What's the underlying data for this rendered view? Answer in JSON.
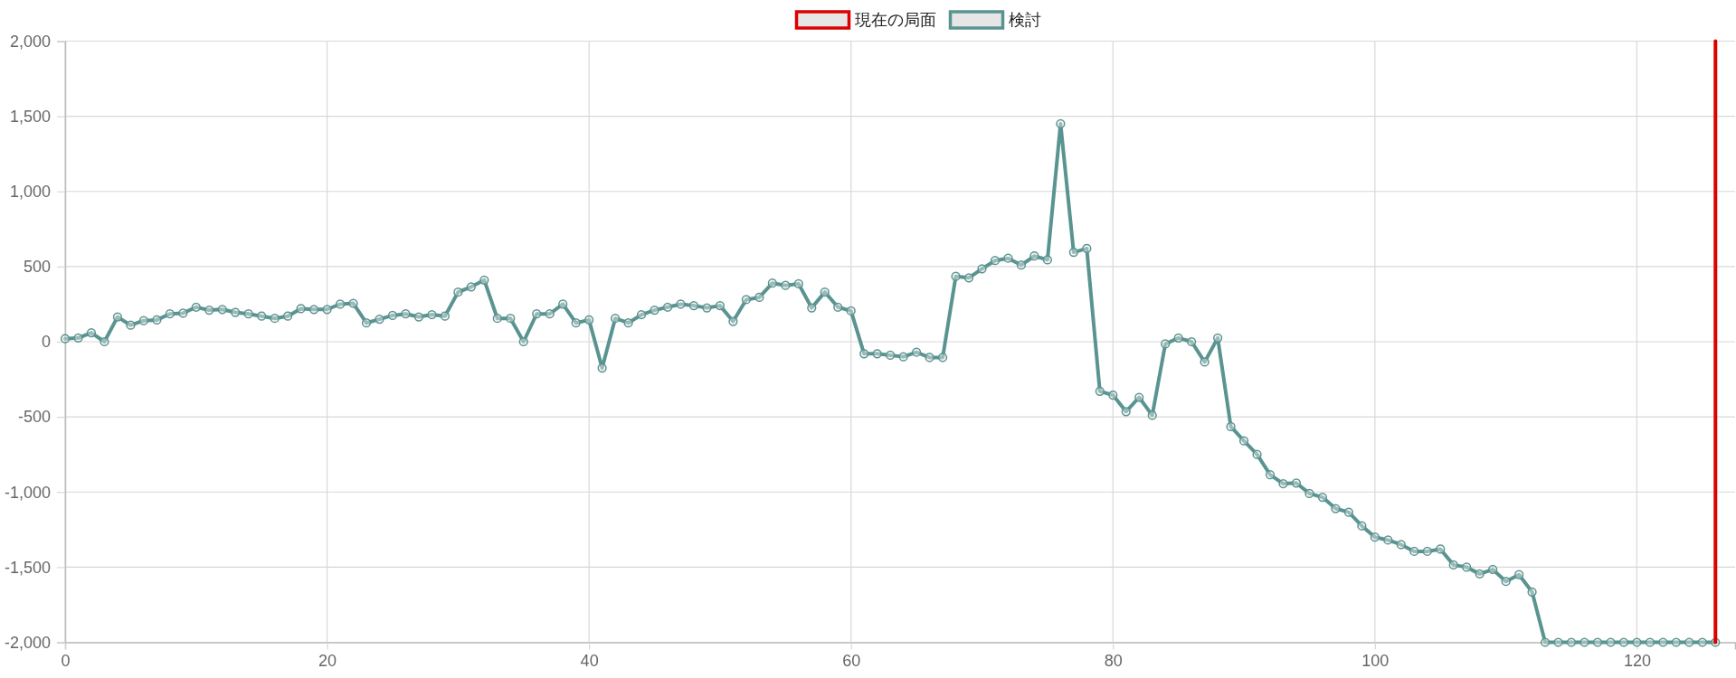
{
  "chart_data": {
    "type": "line",
    "x": [
      0,
      1,
      2,
      3,
      4,
      5,
      6,
      7,
      8,
      9,
      10,
      11,
      12,
      13,
      14,
      15,
      16,
      17,
      18,
      19,
      20,
      21,
      22,
      23,
      24,
      25,
      26,
      27,
      28,
      29,
      30,
      31,
      32,
      33,
      34,
      35,
      36,
      37,
      38,
      39,
      40,
      41,
      42,
      43,
      44,
      45,
      46,
      47,
      48,
      49,
      50,
      51,
      52,
      53,
      54,
      55,
      56,
      57,
      58,
      59,
      60,
      61,
      62,
      63,
      64,
      65,
      66,
      67,
      68,
      69,
      70,
      71,
      72,
      73,
      74,
      75,
      76,
      77,
      78,
      79,
      80,
      81,
      82,
      83,
      84,
      85,
      86,
      87,
      88,
      89,
      90,
      91,
      92,
      93,
      94,
      95,
      96,
      97,
      98,
      99,
      100,
      101,
      102,
      103,
      104,
      105,
      106,
      107,
      108,
      109,
      110,
      111,
      112,
      113,
      114,
      115,
      116,
      117,
      118,
      119,
      120,
      121,
      122,
      123,
      124,
      125,
      126
    ],
    "series": [
      {
        "name": "現在の局面",
        "color": "#dd0000",
        "marker": "none",
        "x": [
          126,
          126
        ],
        "values": [
          -2000,
          2000
        ]
      },
      {
        "name": "検討",
        "color": "#5a9491",
        "marker": "circle",
        "values": [
          20,
          25,
          60,
          0,
          165,
          110,
          140,
          145,
          185,
          190,
          230,
          210,
          215,
          195,
          185,
          170,
          155,
          170,
          220,
          215,
          215,
          250,
          255,
          125,
          150,
          175,
          185,
          165,
          180,
          170,
          330,
          365,
          410,
          155,
          155,
          0,
          185,
          185,
          250,
          125,
          145,
          -175,
          155,
          125,
          180,
          210,
          230,
          250,
          240,
          225,
          240,
          135,
          280,
          295,
          390,
          375,
          385,
          225,
          330,
          230,
          205,
          -80,
          -80,
          -90,
          -100,
          -70,
          -105,
          -105,
          435,
          425,
          485,
          540,
          555,
          510,
          570,
          545,
          1450,
          595,
          620,
          -330,
          -355,
          -465,
          -370,
          -490,
          -15,
          25,
          0,
          -135,
          25,
          -565,
          -660,
          -750,
          -885,
          -945,
          -940,
          -1010,
          -1035,
          -1110,
          -1135,
          -1225,
          -1300,
          -1320,
          -1350,
          -1395,
          -1395,
          -1380,
          -1485,
          -1500,
          -1545,
          -1515,
          -1595,
          -1550,
          -1665,
          -2000,
          -2000,
          -2000,
          -2000,
          -2000,
          -2000,
          -2000,
          -2000,
          -2000,
          -2000,
          -2000,
          -2000,
          -2000,
          -2000
        ]
      }
    ],
    "xlim": [
      0,
      127.5
    ],
    "xticks": [
      0,
      20,
      40,
      60,
      80,
      100,
      120
    ],
    "ylim": [
      -2000,
      2000
    ],
    "yticks": [
      {
        "value": -2000,
        "label": "-2,000"
      },
      {
        "value": -1500,
        "label": "-1,500"
      },
      {
        "value": -1000,
        "label": "-1,000"
      },
      -500,
      0,
      500,
      {
        "value": 1000,
        "label": "1,000"
      },
      {
        "value": 1500,
        "label": "1,500"
      },
      {
        "value": 2000,
        "label": "2,000"
      }
    ],
    "grid": true,
    "legend": "top",
    "line_style": "solid"
  }
}
